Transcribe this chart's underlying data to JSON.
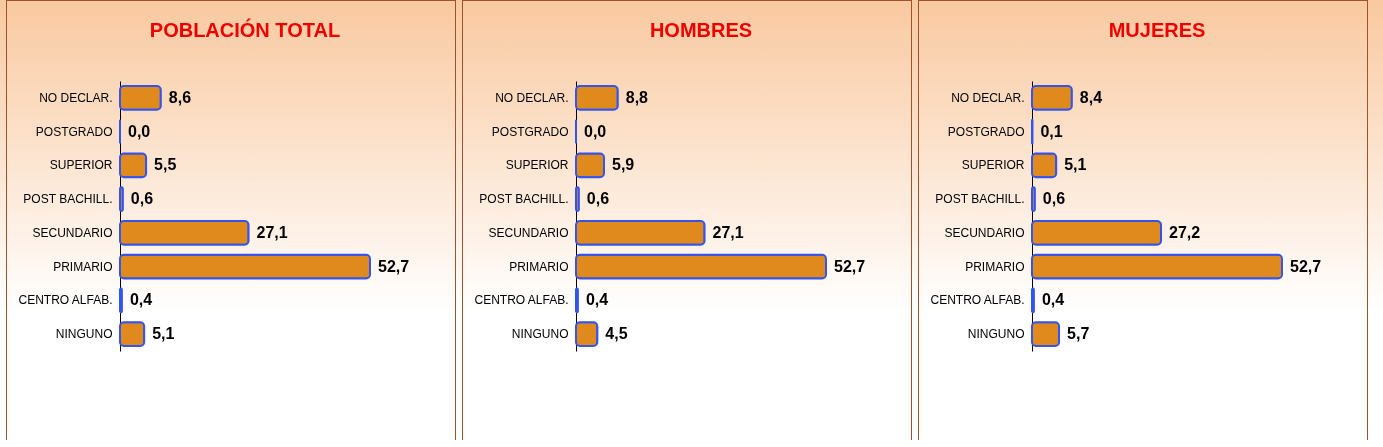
{
  "chart_data": [
    {
      "type": "bar",
      "orientation": "horizontal",
      "title": "POBLACIÓN TOTAL",
      "categories": [
        "NO DECLAR.",
        "POSTGRADO",
        "SUPERIOR",
        "POST BACHILL.",
        "SECUNDARIO",
        "PRIMARIO",
        "CENTRO ALFAB.",
        "NINGUNO"
      ],
      "values": [
        8.6,
        0.0,
        5.5,
        0.6,
        27.1,
        52.7,
        0.4,
        5.1
      ],
      "value_labels": [
        "8,6",
        "0,0",
        "5,5",
        "0,6",
        "27,1",
        "52,7",
        "0,4",
        "5,1"
      ],
      "color": "#e08a1e",
      "tick_labels": "y",
      "grid": false
    },
    {
      "type": "bar",
      "orientation": "horizontal",
      "title": "HOMBRES",
      "categories": [
        "NO DECLAR.",
        "POSTGRADO",
        "SUPERIOR",
        "POST BACHILL.",
        "SECUNDARIO",
        "PRIMARIO",
        "CENTRO ALFAB.",
        "NINGUNO"
      ],
      "values": [
        8.8,
        0.0,
        5.9,
        0.6,
        27.1,
        52.7,
        0.4,
        4.5
      ],
      "value_labels": [
        "8,8",
        "0,0",
        "5,9",
        "0,6",
        "27,1",
        "52,7",
        "0,4",
        "4,5"
      ],
      "color": "#e08a1e",
      "tick_labels": "y",
      "grid": false
    },
    {
      "type": "bar",
      "orientation": "horizontal",
      "title": "MUJERES",
      "categories": [
        "NO DECLAR.",
        "POSTGRADO",
        "SUPERIOR",
        "POST BACHILL.",
        "SECUNDARIO",
        "PRIMARIO",
        "CENTRO ALFAB.",
        "NINGUNO"
      ],
      "values": [
        8.4,
        0.1,
        5.1,
        0.6,
        27.2,
        52.7,
        0.4,
        5.7
      ],
      "value_labels": [
        "8,4",
        "0,1",
        "5,1",
        "0,6",
        "27,2",
        "52,7",
        "0,4",
        "5,7"
      ],
      "color": "#e08a1e",
      "tick_labels": "y",
      "grid": false
    }
  ]
}
